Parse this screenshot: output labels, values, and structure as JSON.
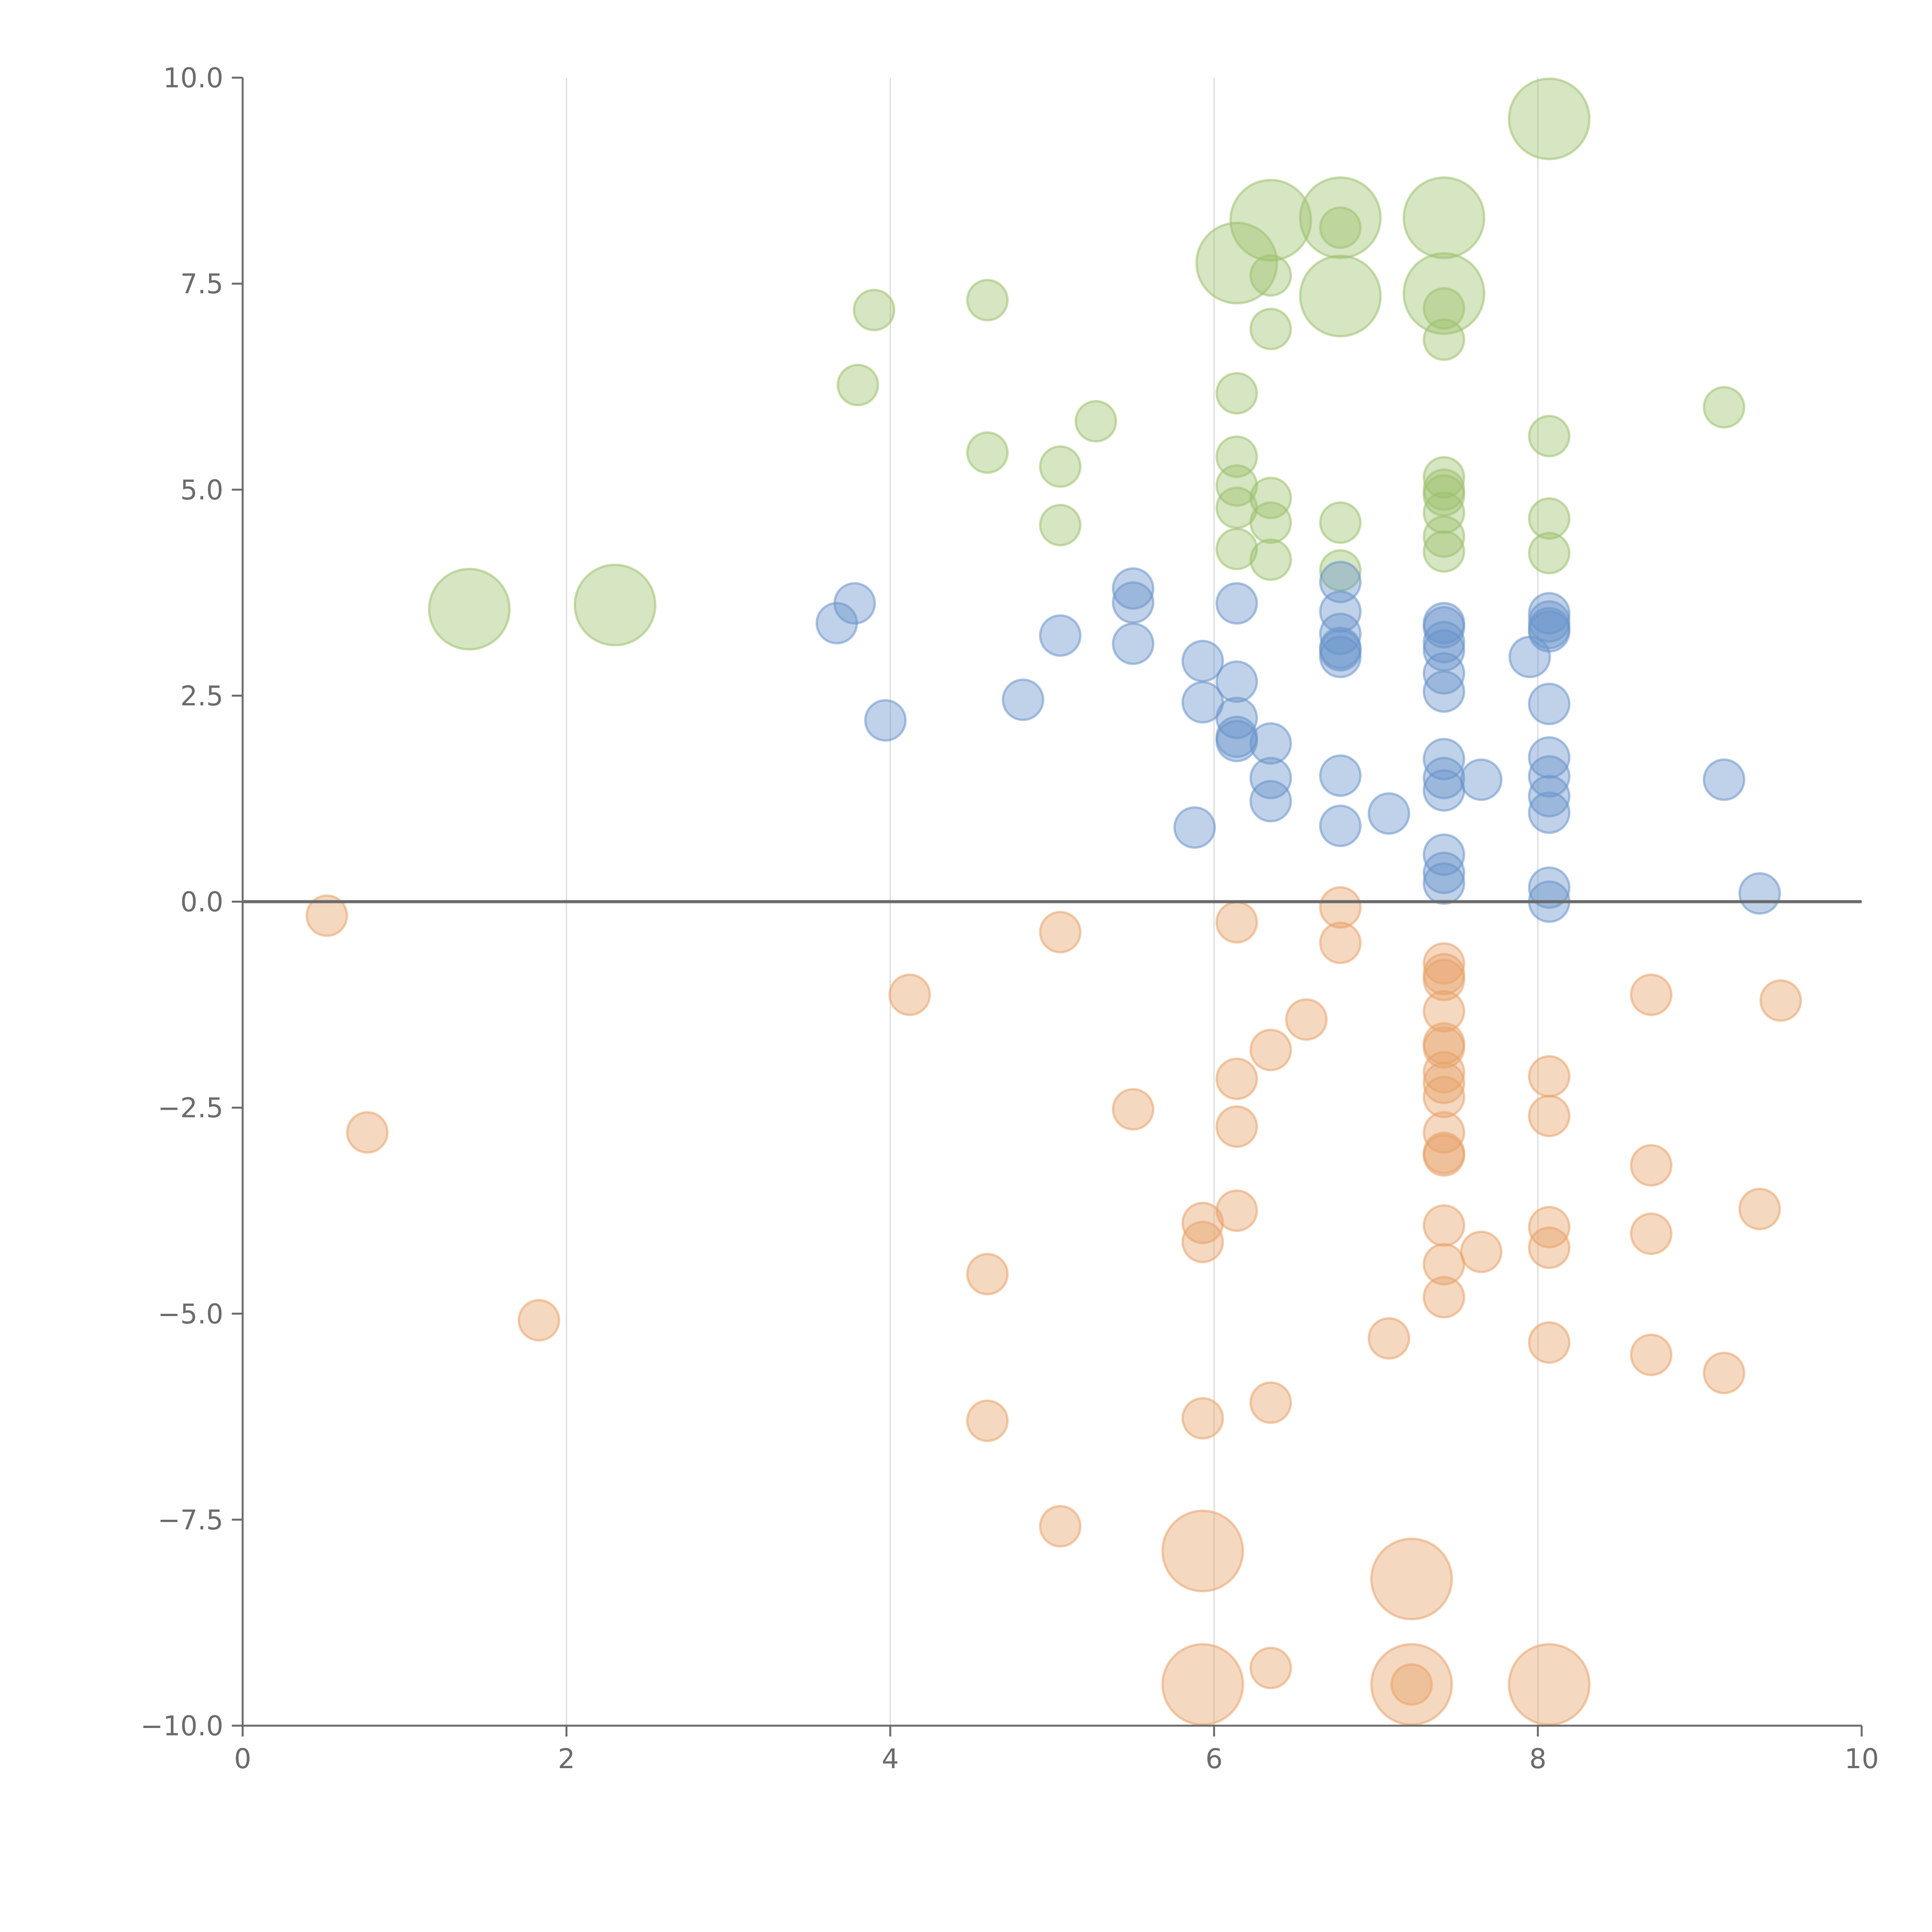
{
  "chart_data": {
    "type": "scatter",
    "title": "",
    "xlabel": "",
    "ylabel": "",
    "xlim": [
      0,
      10
    ],
    "ylim": [
      -10,
      10
    ],
    "grid": "vertical",
    "zero_line": true,
    "x_ticks": [
      "0",
      "2",
      "4",
      "6",
      "8",
      "10"
    ],
    "y_ticks": [
      "10.0",
      "7.5",
      "5.0",
      "2.5",
      "0.0",
      "−2.5",
      "−5.0",
      "−7.5",
      "−10.0"
    ],
    "x_tick_values": [
      0,
      2,
      4,
      6,
      8,
      10
    ],
    "y_tick_values": [
      10,
      7.5,
      5,
      2.5,
      0,
      -2.5,
      -5,
      -7.5,
      -10
    ],
    "series": [
      {
        "name": "green",
        "color": "#9dc16e",
        "points": [
          [
            1.4,
            3.55,
            2.0
          ],
          [
            2.3,
            3.6,
            2.0
          ],
          [
            3.8,
            6.27,
            1
          ],
          [
            3.9,
            7.18,
            1
          ],
          [
            4.6,
            7.3,
            1
          ],
          [
            4.6,
            5.45,
            1
          ],
          [
            5.05,
            5.28,
            1
          ],
          [
            5.05,
            4.57,
            1
          ],
          [
            5.27,
            5.83,
            1
          ],
          [
            6.14,
            7.75,
            2.0
          ],
          [
            6.35,
            8.27,
            2.0
          ],
          [
            6.78,
            8.3,
            2.0
          ],
          [
            6.78,
            7.35,
            2.0
          ],
          [
            7.42,
            8.3,
            2.0
          ],
          [
            7.42,
            7.38,
            2.0
          ],
          [
            8.07,
            9.5,
            2.0
          ],
          [
            6.35,
            7.6,
            1
          ],
          [
            6.35,
            6.95,
            1
          ],
          [
            6.14,
            6.17,
            1
          ],
          [
            6.14,
            5.4,
            1
          ],
          [
            6.14,
            5.05,
            1
          ],
          [
            6.14,
            4.78,
            1
          ],
          [
            6.14,
            4.28,
            1
          ],
          [
            6.35,
            4.9,
            1
          ],
          [
            6.35,
            4.6,
            1
          ],
          [
            6.35,
            4.15,
            1
          ],
          [
            6.78,
            8.18,
            1
          ],
          [
            6.78,
            4.6,
            1
          ],
          [
            6.78,
            4.02,
            1
          ],
          [
            7.42,
            7.2,
            1
          ],
          [
            7.42,
            6.82,
            1
          ],
          [
            7.42,
            5.15,
            1
          ],
          [
            7.42,
            5.0,
            1
          ],
          [
            7.42,
            4.93,
            1
          ],
          [
            7.42,
            4.72,
            1
          ],
          [
            7.42,
            4.43,
            1
          ],
          [
            7.42,
            4.25,
            1
          ],
          [
            8.07,
            5.65,
            1
          ],
          [
            8.07,
            4.65,
            1
          ],
          [
            8.07,
            4.23,
            1
          ],
          [
            9.15,
            6.0,
            1
          ]
        ]
      },
      {
        "name": "blue",
        "color": "#6a94cb",
        "points": [
          [
            3.67,
            3.38,
            1
          ],
          [
            3.78,
            3.62,
            1
          ],
          [
            3.97,
            2.2,
            1
          ],
          [
            4.82,
            2.45,
            1
          ],
          [
            5.05,
            3.23,
            1
          ],
          [
            5.5,
            3.8,
            1
          ],
          [
            5.5,
            3.63,
            1
          ],
          [
            5.5,
            3.13,
            1
          ],
          [
            5.88,
            0.9,
            1
          ],
          [
            5.93,
            2.92,
            1
          ],
          [
            5.93,
            2.42,
            1
          ],
          [
            6.14,
            3.62,
            1
          ],
          [
            6.14,
            2.67,
            1
          ],
          [
            6.14,
            2.23,
            1
          ],
          [
            6.14,
            2.0,
            1
          ],
          [
            6.14,
            1.95,
            1
          ],
          [
            6.35,
            1.92,
            1
          ],
          [
            6.35,
            1.5,
            1
          ],
          [
            6.35,
            1.22,
            1
          ],
          [
            6.78,
            3.88,
            1
          ],
          [
            6.78,
            3.52,
            1
          ],
          [
            6.78,
            3.25,
            1
          ],
          [
            6.78,
            3.08,
            1
          ],
          [
            6.78,
            3.05,
            1
          ],
          [
            6.78,
            2.97,
            1
          ],
          [
            6.78,
            1.53,
            1
          ],
          [
            6.78,
            0.92,
            1
          ],
          [
            7.08,
            1.07,
            1
          ],
          [
            7.42,
            3.38,
            1
          ],
          [
            7.42,
            3.33,
            1
          ],
          [
            7.42,
            3.15,
            1
          ],
          [
            7.42,
            3.05,
            1
          ],
          [
            7.42,
            2.77,
            1
          ],
          [
            7.42,
            2.55,
            1
          ],
          [
            7.42,
            1.73,
            1
          ],
          [
            7.42,
            1.5,
            1
          ],
          [
            7.42,
            1.35,
            1
          ],
          [
            7.42,
            0.57,
            1
          ],
          [
            7.42,
            0.35,
            1
          ],
          [
            7.42,
            0.22,
            1
          ],
          [
            7.65,
            1.48,
            1
          ],
          [
            7.95,
            2.97,
            1
          ],
          [
            8.07,
            3.5,
            1
          ],
          [
            8.07,
            3.4,
            1
          ],
          [
            8.07,
            3.32,
            1
          ],
          [
            8.07,
            3.28,
            1
          ],
          [
            8.07,
            2.4,
            1
          ],
          [
            8.07,
            1.75,
            1
          ],
          [
            8.07,
            1.52,
            1
          ],
          [
            8.07,
            1.28,
            1
          ],
          [
            8.07,
            1.08,
            1
          ],
          [
            8.07,
            0.17,
            1
          ],
          [
            8.07,
            0.0,
            1
          ],
          [
            9.15,
            1.48,
            1
          ],
          [
            9.37,
            0.1,
            1
          ]
        ]
      },
      {
        "name": "orange",
        "color": "#e8a36a",
        "points": [
          [
            0.52,
            -0.17,
            1
          ],
          [
            0.77,
            -2.8,
            1
          ],
          [
            1.83,
            -5.08,
            1
          ],
          [
            4.12,
            -1.13,
            1
          ],
          [
            4.6,
            -4.52,
            1
          ],
          [
            4.6,
            -6.3,
            1
          ],
          [
            5.05,
            -0.37,
            1
          ],
          [
            5.05,
            -7.58,
            1
          ],
          [
            5.5,
            -2.52,
            1
          ],
          [
            5.93,
            -3.9,
            1
          ],
          [
            5.93,
            -4.13,
            1
          ],
          [
            5.93,
            -6.27,
            1
          ],
          [
            5.93,
            -7.88,
            2.0
          ],
          [
            5.93,
            -9.5,
            2.0
          ],
          [
            6.14,
            -0.25,
            1
          ],
          [
            6.14,
            -2.15,
            1
          ],
          [
            6.14,
            -2.73,
            1
          ],
          [
            6.14,
            -3.75,
            1
          ],
          [
            6.35,
            -1.8,
            1
          ],
          [
            6.35,
            -6.08,
            1
          ],
          [
            6.35,
            -9.3,
            1
          ],
          [
            6.57,
            -1.43,
            1
          ],
          [
            6.78,
            -0.07,
            1
          ],
          [
            6.78,
            -0.5,
            1
          ],
          [
            7.08,
            -5.3,
            1
          ],
          [
            7.22,
            -8.22,
            2.0
          ],
          [
            7.22,
            -9.5,
            2.0
          ],
          [
            7.22,
            -9.5,
            1
          ],
          [
            7.42,
            -0.75,
            1
          ],
          [
            7.42,
            -0.88,
            1
          ],
          [
            7.42,
            -0.95,
            1
          ],
          [
            7.42,
            -1.33,
            1
          ],
          [
            7.42,
            -1.72,
            1
          ],
          [
            7.42,
            -1.77,
            1
          ],
          [
            7.42,
            -2.07,
            1
          ],
          [
            7.42,
            -2.2,
            1
          ],
          [
            7.42,
            -2.37,
            1
          ],
          [
            7.42,
            -2.8,
            1
          ],
          [
            7.42,
            -3.05,
            1
          ],
          [
            7.42,
            -3.08,
            1
          ],
          [
            7.42,
            -3.93,
            1
          ],
          [
            7.42,
            -4.4,
            1
          ],
          [
            7.42,
            -4.8,
            1
          ],
          [
            7.65,
            -4.25,
            1
          ],
          [
            8.07,
            -2.12,
            1
          ],
          [
            8.07,
            -2.6,
            1
          ],
          [
            8.07,
            -3.95,
            1
          ],
          [
            8.07,
            -4.2,
            1
          ],
          [
            8.07,
            -5.35,
            1
          ],
          [
            8.07,
            -9.5,
            2.0
          ],
          [
            8.7,
            -1.13,
            1
          ],
          [
            8.7,
            -3.2,
            1
          ],
          [
            8.7,
            -4.03,
            1
          ],
          [
            8.7,
            -5.5,
            1
          ],
          [
            9.15,
            -5.72,
            1
          ],
          [
            9.37,
            -3.73,
            1
          ],
          [
            9.5,
            -1.2,
            1
          ]
        ]
      }
    ]
  }
}
